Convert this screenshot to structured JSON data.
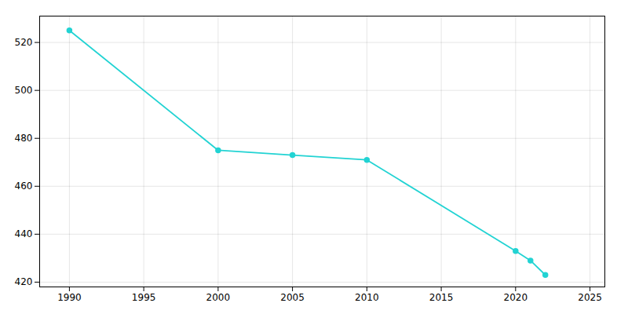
{
  "chart_data": {
    "type": "line",
    "x": [
      1990,
      2000,
      2005,
      2010,
      2020,
      2021,
      2022
    ],
    "values": [
      525,
      475,
      473,
      471,
      433,
      429,
      423
    ],
    "color": "#22d3d3",
    "marker": "circle",
    "xlim": [
      1988,
      2026
    ],
    "ylim": [
      418,
      531
    ],
    "xticks": [
      1990,
      1995,
      2000,
      2005,
      2010,
      2015,
      2020,
      2025
    ],
    "yticks": [
      420,
      440,
      460,
      480,
      500,
      520
    ],
    "grid": true
  }
}
